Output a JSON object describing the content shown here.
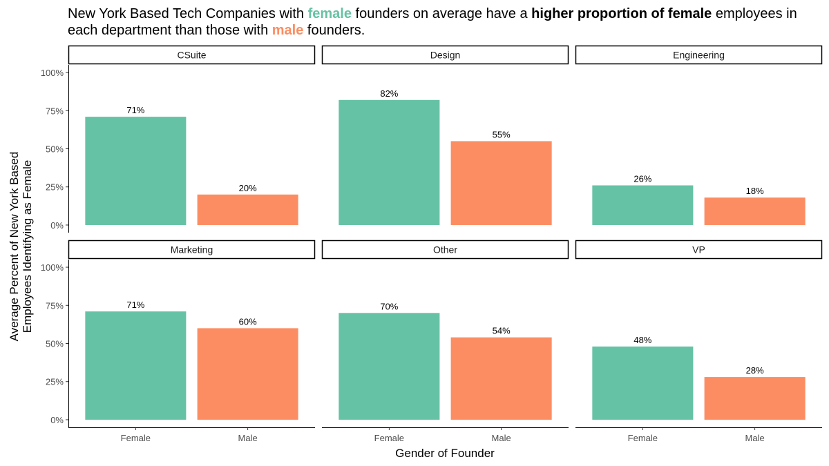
{
  "title": {
    "part1": "New York Based Tech Companies with ",
    "female_word": "female",
    "part2": " founders on average have a ",
    "bold_phrase": "higher proportion of female",
    "part3": " employees in each department than those with ",
    "male_word": "male",
    "part4": " founders."
  },
  "chart_data": {
    "type": "bar",
    "facet_by": "Department",
    "facet_layout": "2 rows x 3 columns",
    "categories": [
      "Female",
      "Male"
    ],
    "colors": {
      "Female": "#66c2a5",
      "Male": "#fc8d62"
    },
    "facets": [
      {
        "name": "CSuite",
        "values": [
          71,
          20
        ],
        "labels": [
          "71%",
          "20%"
        ]
      },
      {
        "name": "Design",
        "values": [
          82,
          55
        ],
        "labels": [
          "82%",
          "55%"
        ]
      },
      {
        "name": "Engineering",
        "values": [
          26,
          18
        ],
        "labels": [
          "26%",
          "18%"
        ]
      },
      {
        "name": "Marketing",
        "values": [
          71,
          60
        ],
        "labels": [
          "71%",
          "60%"
        ]
      },
      {
        "name": "Other",
        "values": [
          70,
          54
        ],
        "labels": [
          "70%",
          "54%"
        ]
      },
      {
        "name": "VP",
        "values": [
          48,
          28
        ],
        "labels": [
          "48%",
          "28%"
        ]
      }
    ],
    "xlabel": "Gender of Founder",
    "ylabel_lines": [
      "Average Percent of New York Based",
      "Employees Identifying as Female"
    ],
    "ylim": [
      0,
      100
    ],
    "yticks": [
      0,
      25,
      50,
      75,
      100
    ],
    "ytick_labels": [
      "0%",
      "25%",
      "50%",
      "75%",
      "100%"
    ],
    "grid": false,
    "legend": "none"
  }
}
